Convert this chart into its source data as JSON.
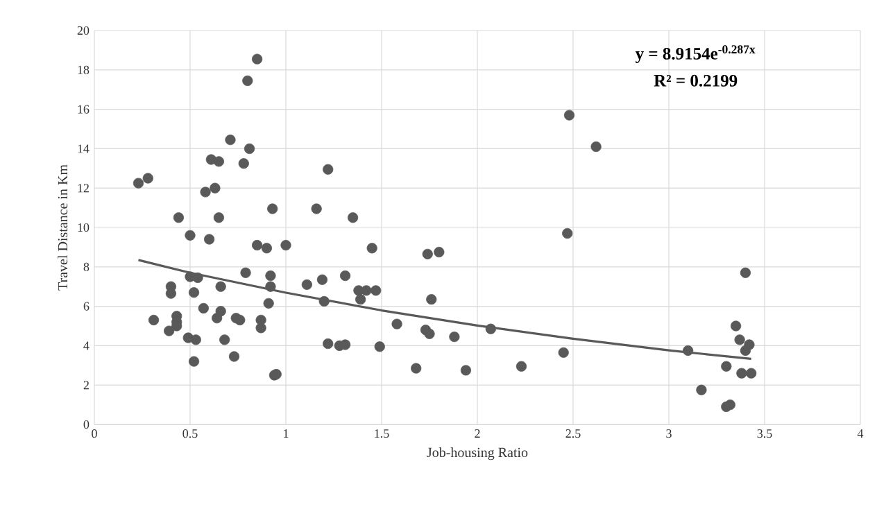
{
  "chart_data": {
    "type": "scatter",
    "xlabel": "Job-housing Ratio",
    "ylabel": "Travel Distance in Km",
    "xlim": [
      0,
      4
    ],
    "ylim": [
      0,
      20
    ],
    "xticks": [
      0,
      0.5,
      1,
      1.5,
      2,
      2.5,
      3,
      3.5,
      4
    ],
    "yticks": [
      0,
      2,
      4,
      6,
      8,
      10,
      12,
      14,
      16,
      18,
      20
    ],
    "grid": true,
    "annotations": [
      "**y = 8.9154e$^{-0.287x}$**",
      "**R² = 0.2199**"
    ],
    "series": [
      {
        "color": "#595959",
        "marker": "circle",
        "x": [
          0.23,
          0.28,
          0.31,
          0.39,
          0.4,
          0.4,
          0.43,
          0.43,
          0.43,
          0.44,
          0.49,
          0.5,
          0.5,
          0.52,
          0.52,
          0.53,
          0.54,
          0.57,
          0.58,
          0.6,
          0.61,
          0.63,
          0.64,
          0.65,
          0.65,
          0.66,
          0.66,
          0.68,
          0.71,
          0.73,
          0.74,
          0.76,
          0.78,
          0.79,
          0.8,
          0.81,
          0.85,
          0.85,
          0.87,
          0.87,
          0.9,
          0.91,
          0.92,
          0.92,
          0.93,
          0.94,
          0.95,
          1.0,
          1.11,
          1.16,
          1.19,
          1.2,
          1.22,
          1.22,
          1.28,
          1.31,
          1.31,
          1.35,
          1.38,
          1.39,
          1.42,
          1.45,
          1.47,
          1.49,
          1.58,
          1.68,
          1.73,
          1.74,
          1.75,
          1.76,
          1.8,
          1.88,
          1.94,
          2.07,
          2.23,
          2.45,
          2.47,
          2.48,
          2.62,
          3.1,
          3.17,
          3.3,
          3.3,
          3.32,
          3.35,
          3.37,
          3.38,
          3.4,
          3.4,
          3.42,
          3.43
        ],
        "values": [
          12.25,
          12.5,
          5.3,
          4.75,
          7.0,
          6.65,
          5.5,
          5.2,
          5.0,
          10.5,
          4.4,
          7.5,
          9.6,
          3.2,
          6.7,
          4.3,
          7.45,
          5.9,
          11.8,
          9.4,
          13.45,
          12.0,
          5.4,
          10.5,
          13.35,
          7.0,
          5.75,
          4.3,
          14.45,
          3.45,
          5.4,
          5.3,
          13.25,
          7.7,
          17.45,
          14.0,
          18.55,
          9.1,
          5.3,
          4.9,
          8.95,
          6.15,
          7.55,
          7.0,
          10.95,
          2.5,
          2.55,
          9.1,
          7.1,
          10.95,
          7.35,
          6.25,
          4.1,
          12.95,
          4.0,
          4.05,
          7.55,
          10.5,
          6.8,
          6.35,
          6.8,
          8.95,
          6.8,
          3.95,
          5.1,
          2.85,
          4.8,
          8.65,
          4.6,
          6.35,
          8.75,
          4.45,
          2.75,
          4.85,
          2.95,
          3.65,
          9.7,
          15.7,
          14.1,
          3.75,
          1.75,
          2.95,
          0.9,
          1.0,
          5.0,
          4.3,
          2.6,
          7.7,
          3.75,
          4.05,
          2.6
        ]
      },
      {
        "type": "line",
        "color": "#595959",
        "marker": "none",
        "line_style": "solid",
        "x": [
          0.23,
          0.5,
          1.0,
          1.5,
          2.0,
          2.5,
          3.0,
          3.43
        ],
        "values": [
          8.35,
          7.7,
          6.69,
          5.79,
          5.02,
          4.35,
          3.76,
          3.33
        ]
      }
    ]
  }
}
